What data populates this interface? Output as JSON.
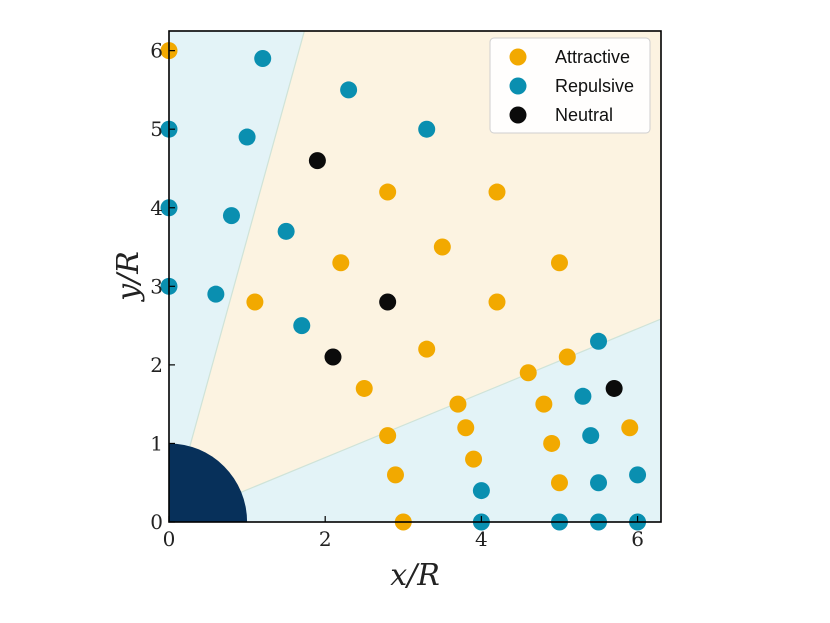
{
  "chart_data": {
    "type": "scatter",
    "xlabel": "x/R",
    "ylabel": "y/R",
    "xlim": [
      0,
      6.3
    ],
    "ylim": [
      0,
      6.25
    ],
    "xticks": [
      0,
      2,
      4,
      6
    ],
    "yticks": [
      0,
      1,
      2,
      3,
      4,
      5,
      6
    ],
    "grid": false,
    "legend_position": "top-right",
    "colors": {
      "attractive": "#f2a900",
      "repulsive": "#0a8fb0",
      "neutral": "#0b0b0b",
      "core": "#07305a",
      "region_attractive": "#fcf3e1",
      "region_repulsive": "#e3f3f7"
    },
    "core_disk": {
      "radius": 1.0
    },
    "regions": {
      "attractive_wedge_angles_deg": [
        22.3,
        74.5
      ]
    },
    "series": [
      {
        "name": "Attractive",
        "color": "#f2a900",
        "points": [
          [
            0,
            6.0
          ],
          [
            1.1,
            2.8
          ],
          [
            2.2,
            3.3
          ],
          [
            2.5,
            1.7
          ],
          [
            2.8,
            4.2
          ],
          [
            2.8,
            1.1
          ],
          [
            2.9,
            0.6
          ],
          [
            3.0,
            0.0
          ],
          [
            3.3,
            2.2
          ],
          [
            3.5,
            3.5
          ],
          [
            3.7,
            1.5
          ],
          [
            3.8,
            1.2
          ],
          [
            3.9,
            0.8
          ],
          [
            4.2,
            4.2
          ],
          [
            4.2,
            2.8
          ],
          [
            4.6,
            1.9
          ],
          [
            4.8,
            1.5
          ],
          [
            4.9,
            1.0
          ],
          [
            5.0,
            3.3
          ],
          [
            5.0,
            0.5
          ],
          [
            5.1,
            2.1
          ],
          [
            5.9,
            1.2
          ]
        ]
      },
      {
        "name": "Repulsive",
        "color": "#0a8fb0",
        "points": [
          [
            1.2,
            5.9
          ],
          [
            2.3,
            5.5
          ],
          [
            0,
            5.0
          ],
          [
            1.0,
            4.9
          ],
          [
            3.3,
            5.0
          ],
          [
            0,
            4.0
          ],
          [
            0.8,
            3.9
          ],
          [
            1.5,
            3.7
          ],
          [
            0,
            3.0
          ],
          [
            0.6,
            2.9
          ],
          [
            1.7,
            2.5
          ],
          [
            5.5,
            2.3
          ],
          [
            5.3,
            1.6
          ],
          [
            5.4,
            1.1
          ],
          [
            5.5,
            0.5
          ],
          [
            6.0,
            0.6
          ],
          [
            4.0,
            0.4
          ],
          [
            4.0,
            0.0
          ],
          [
            5.0,
            0.0
          ],
          [
            5.5,
            0.0
          ],
          [
            6.0,
            0.0
          ]
        ]
      },
      {
        "name": "Neutral",
        "color": "#0b0b0b",
        "points": [
          [
            1.9,
            4.6
          ],
          [
            2.8,
            2.8
          ],
          [
            2.1,
            2.1
          ],
          [
            5.7,
            1.7
          ]
        ]
      }
    ],
    "legend": [
      {
        "label": "Attractive",
        "color": "#f2a900"
      },
      {
        "label": "Repulsive",
        "color": "#0a8fb0"
      },
      {
        "label": "Neutral",
        "color": "#0b0b0b"
      }
    ]
  }
}
